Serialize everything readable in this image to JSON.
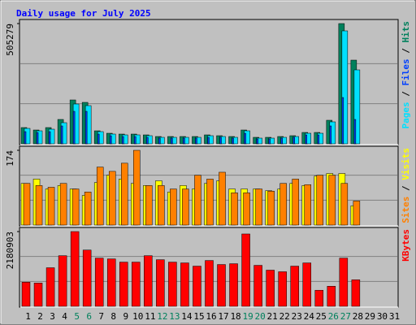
{
  "title": "Daily usage for July 2025",
  "chart_data": [
    {
      "type": "bar",
      "legend_separator": " / ",
      "series": [
        {
          "name": "Hits",
          "color": "#00805c",
          "values": [
            68280,
            58040,
            68280,
            102420,
            184360,
            174110,
            54620,
            44380,
            40970,
            40970,
            37550,
            30730,
            30730,
            30730,
            30730,
            37550,
            34140,
            30730,
            58040,
            27310,
            27310,
            30730,
            34140,
            47800,
            47800,
            99010,
            505279,
            351640,
            0,
            0,
            0
          ]
        },
        {
          "name": "Files",
          "color": "#0040ff",
          "values": [
            51210,
            47800,
            51210,
            75110,
            136560,
            136560,
            40970,
            34140,
            30730,
            30730,
            27310,
            23900,
            23900,
            23900,
            23900,
            27310,
            27310,
            23900,
            44380,
            20480,
            20480,
            23900,
            27310,
            37550,
            37550,
            75110,
            194600,
            102420,
            0,
            0,
            0
          ]
        },
        {
          "name": "Pages",
          "color": "#00e0ff",
          "values": [
            64870,
            54620,
            61450,
            88760,
            167290,
            160460,
            51210,
            40970,
            37550,
            37550,
            34140,
            27310,
            27310,
            27310,
            27310,
            34140,
            30730,
            27310,
            54620,
            23900,
            23900,
            27310,
            30730,
            44380,
            44380,
            92180,
            474550,
            310670,
            0,
            0,
            0
          ]
        }
      ],
      "ylim": [
        0,
        505279
      ],
      "yticks": [
        505279
      ]
    },
    {
      "type": "bar",
      "legend_separator": " / ",
      "series": [
        {
          "name": "Visits",
          "color": "#ffff00",
          "values": [
            97,
            107,
            84,
            92,
            84,
            69,
            99,
            116,
            107,
            97,
            92,
            103,
            77,
            92,
            84,
            97,
            103,
            84,
            84,
            84,
            80,
            84,
            97,
            92,
            114,
            120,
            120,
            45,
            0,
            0,
            0
          ]
        },
        {
          "name": "Sites",
          "color": "#ff8000",
          "values": [
            97,
            92,
            88,
            97,
            84,
            77,
            135,
            125,
            144,
            174,
            92,
            92,
            84,
            84,
            116,
            107,
            123,
            75,
            75,
            84,
            79,
            97,
            107,
            94,
            116,
            116,
            97,
            56,
            0,
            0,
            0
          ]
        }
      ],
      "ylim": [
        0,
        174
      ],
      "yticks": [
        174
      ]
    },
    {
      "type": "bar",
      "legend_separator": "",
      "series": [
        {
          "name": "KBytes",
          "color": "#ff0000",
          "values": [
            703500,
            680100,
            1125600,
            1477400,
            2180903,
            1641600,
            1407100,
            1383600,
            1289800,
            1289800,
            1477400,
            1360200,
            1289800,
            1266400,
            1172600,
            1336700,
            1219500,
            1242900,
            2110600,
            1196000,
            1055300,
            1008400,
            1172600,
            1266400,
            469000,
            586300,
            1407100,
            773900,
            0,
            0,
            0
          ]
        }
      ],
      "ylim": [
        0,
        2180903
      ],
      "yticks": [
        2180903
      ],
      "categories": [
        "1",
        "2",
        "3",
        "4",
        "5",
        "6",
        "7",
        "8",
        "9",
        "10",
        "11",
        "12",
        "13",
        "14",
        "15",
        "16",
        "17",
        "18",
        "19",
        "20",
        "21",
        "22",
        "23",
        "24",
        "25",
        "26",
        "27",
        "28",
        "29",
        "30",
        "31"
      ],
      "category_colors": [
        "#000000",
        "#000000",
        "#000000",
        "#000000",
        "#00805c",
        "#00805c",
        "#000000",
        "#000000",
        "#000000",
        "#000000",
        "#000000",
        "#00805c",
        "#00805c",
        "#000000",
        "#000000",
        "#000000",
        "#000000",
        "#000000",
        "#00805c",
        "#00805c",
        "#000000",
        "#000000",
        "#000000",
        "#000000",
        "#000000",
        "#00805c",
        "#00805c",
        "#000000",
        "#000000",
        "#000000",
        "#000000"
      ]
    }
  ]
}
